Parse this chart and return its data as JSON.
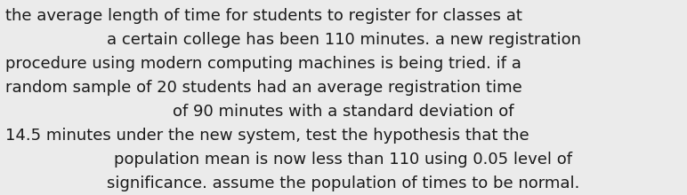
{
  "lines": [
    "the average length of time for students to register for classes at",
    "a certain college has been 110 minutes. a new registration",
    "procedure using modern computing machines is being tried. if a",
    "random sample of 20 students had an average registration time",
    "of 90 minutes with a standard deviation of",
    "14.5 minutes under the new system, test the hypothesis that the",
    "population mean is now less than 110 using 0.05 level of",
    "significance. assume the population of times to be normal."
  ],
  "alignments": [
    "left",
    "center",
    "left",
    "left",
    "center",
    "left",
    "center",
    "center"
  ],
  "background_color": "#ebebeb",
  "text_color": "#1a1a1a",
  "font_size": 13.0,
  "font_family": "sans-serif"
}
